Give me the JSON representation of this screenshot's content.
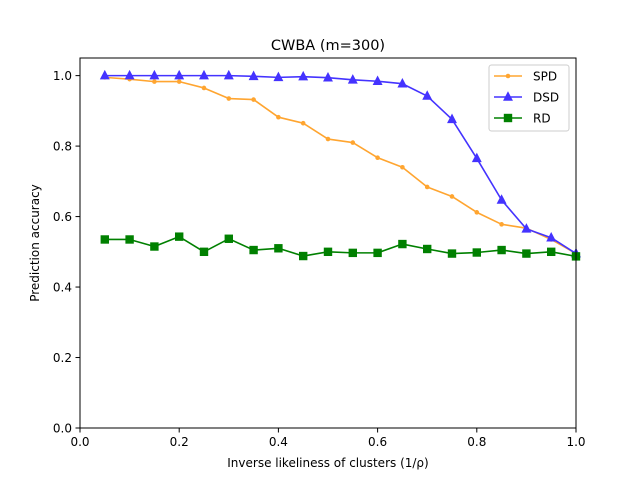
{
  "chart_data": {
    "type": "line",
    "title": "CWBA (m=300)",
    "xlabel": "Inverse likeliness of clusters (1/ρ)",
    "ylabel": "Prediction accuracy",
    "xlim": [
      0.0,
      1.0
    ],
    "ylim": [
      0.0,
      1.05
    ],
    "x_ticks": [
      0.0,
      0.2,
      0.4,
      0.6,
      0.8,
      1.0
    ],
    "x_tick_labels": [
      "0.0",
      "0.2",
      "0.4",
      "0.6",
      "0.8",
      "1.0"
    ],
    "y_ticks": [
      0.0,
      0.2,
      0.4,
      0.6,
      0.8,
      1.0
    ],
    "y_tick_labels": [
      "0.0",
      "0.2",
      "0.4",
      "0.6",
      "0.8",
      "1.0"
    ],
    "grid": false,
    "legend_position": "top-right",
    "x": [
      0.05,
      0.1,
      0.15,
      0.2,
      0.25,
      0.3,
      0.35,
      0.4,
      0.45,
      0.5,
      0.55,
      0.6,
      0.65,
      0.7,
      0.75,
      0.8,
      0.85,
      0.9,
      0.95,
      1.0
    ],
    "series": [
      {
        "name": "SPD",
        "color": "#ffa530",
        "marker": "dot",
        "values": [
          0.995,
          0.99,
          0.983,
          0.983,
          0.965,
          0.935,
          0.932,
          0.882,
          0.865,
          0.82,
          0.81,
          0.767,
          0.74,
          0.684,
          0.657,
          0.612,
          0.578,
          0.567,
          0.535,
          0.495
        ]
      },
      {
        "name": "DSD",
        "color": "#4433ff",
        "marker": "triangle",
        "values": [
          1.0,
          1.0,
          1.0,
          1.0,
          1.0,
          1.0,
          0.998,
          0.995,
          0.997,
          0.994,
          0.988,
          0.984,
          0.977,
          0.942,
          0.876,
          0.765,
          0.647,
          0.565,
          0.54,
          0.495
        ]
      },
      {
        "name": "RD",
        "color": "#008000",
        "marker": "square",
        "values": [
          0.535,
          0.535,
          0.515,
          0.543,
          0.5,
          0.537,
          0.505,
          0.51,
          0.488,
          0.5,
          0.497,
          0.497,
          0.522,
          0.508,
          0.495,
          0.498,
          0.505,
          0.495,
          0.5,
          0.487
        ]
      }
    ]
  }
}
